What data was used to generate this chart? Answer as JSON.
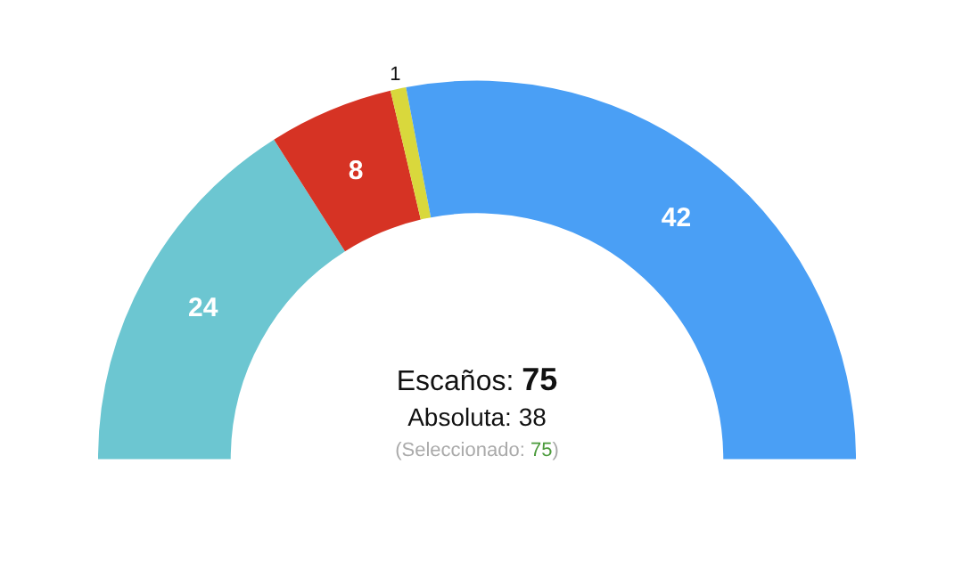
{
  "chart_data": {
    "type": "donut",
    "categories": [
      null,
      null,
      null,
      null
    ],
    "values": [
      24,
      8,
      1,
      42
    ],
    "colors": [
      "#6cc6d1",
      "#d63324",
      "#d9d83c",
      "#4a9ff5"
    ],
    "data_labels": true,
    "legend": false,
    "annotations": [
      "Escaños: 75",
      "Absoluta: 38",
      "(Seleccionado: 75)"
    ]
  }
}
